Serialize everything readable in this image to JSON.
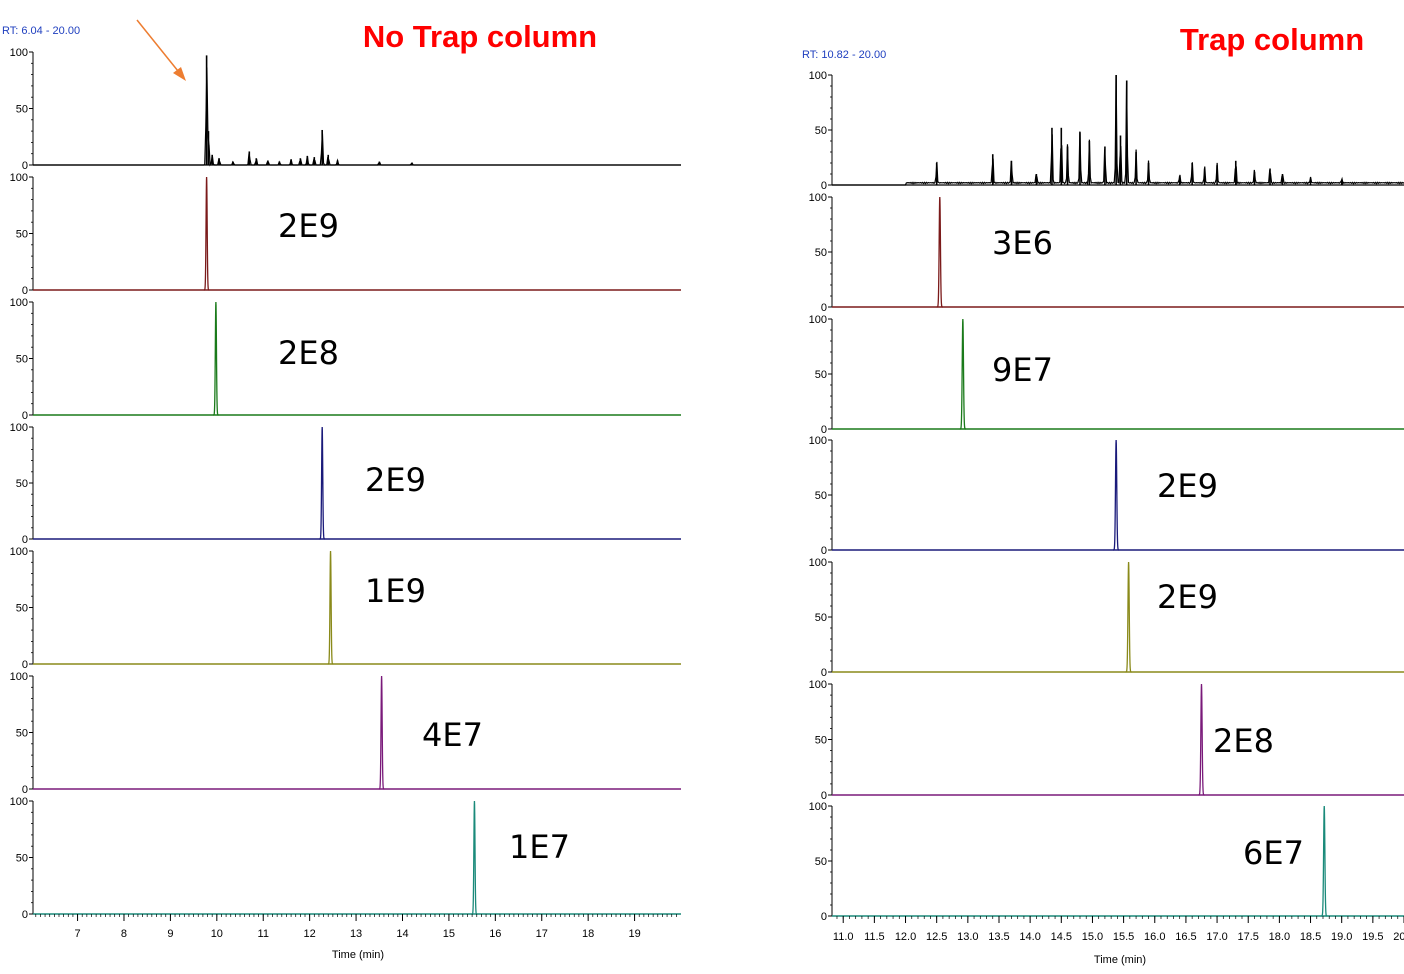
{
  "chart_data": [
    {
      "type": "line",
      "title": "No Trap column",
      "rt_range_label": "RT: 6.04 - 20.00",
      "xlabel": "Time (min)",
      "xlim": [
        6.04,
        20.0
      ],
      "x_ticks": [
        7,
        8,
        9,
        10,
        11,
        12,
        13,
        14,
        15,
        16,
        17,
        18,
        19
      ],
      "ylim": [
        0,
        100
      ],
      "y_ticks": [
        0,
        50,
        100
      ],
      "arrow_annotation": {
        "points_to_x": 9.8
      },
      "tic": {
        "color": "#000000",
        "peaks": [
          [
            9.78,
            97
          ],
          [
            9.82,
            30
          ],
          [
            9.9,
            9
          ],
          [
            10.05,
            6
          ],
          [
            10.35,
            3
          ],
          [
            10.7,
            12
          ],
          [
            10.85,
            6
          ],
          [
            11.1,
            4
          ],
          [
            11.35,
            3
          ],
          [
            11.6,
            5
          ],
          [
            11.8,
            6
          ],
          [
            11.95,
            8
          ],
          [
            12.1,
            7
          ],
          [
            12.27,
            31
          ],
          [
            12.4,
            9
          ],
          [
            12.6,
            4
          ],
          [
            13.5,
            3
          ],
          [
            14.2,
            2
          ]
        ]
      },
      "series": [
        {
          "label": "2E9",
          "color": "#7b1a1a",
          "peak_rt": 9.78
        },
        {
          "label": "2E8",
          "color": "#1a7a1a",
          "peak_rt": 9.98
        },
        {
          "label": "2E9",
          "color": "#1a1a7a",
          "peak_rt": 12.27
        },
        {
          "label": "1E9",
          "color": "#8a8a1a",
          "peak_rt": 12.45
        },
        {
          "label": "4E7",
          "color": "#7a1a7a",
          "peak_rt": 13.55
        },
        {
          "label": "1E7",
          "color": "#1a8a7a",
          "peak_rt": 15.55
        }
      ]
    },
    {
      "type": "line",
      "title": "Trap column",
      "rt_range_label": "RT: 10.82 - 20.00",
      "xlabel": "Time (min)",
      "xlim": [
        10.82,
        20.0
      ],
      "x_ticks": [
        11.0,
        11.5,
        12.0,
        12.5,
        13.0,
        13.5,
        14.0,
        14.5,
        15.0,
        15.5,
        16.0,
        16.5,
        17.0,
        17.5,
        18.0,
        18.5,
        19.0,
        19.5,
        20.0
      ],
      "ylim": [
        0,
        100
      ],
      "y_ticks": [
        0,
        50,
        100
      ],
      "tic": {
        "color": "#000000",
        "peaks": [
          [
            12.5,
            20
          ],
          [
            13.4,
            28
          ],
          [
            13.7,
            22
          ],
          [
            14.1,
            10
          ],
          [
            14.35,
            52
          ],
          [
            14.5,
            52
          ],
          [
            14.6,
            35
          ],
          [
            14.8,
            48
          ],
          [
            14.95,
            40
          ],
          [
            15.2,
            35
          ],
          [
            15.38,
            100
          ],
          [
            15.45,
            45
          ],
          [
            15.55,
            95
          ],
          [
            15.7,
            30
          ],
          [
            15.9,
            20
          ],
          [
            16.4,
            8
          ],
          [
            16.6,
            20
          ],
          [
            16.8,
            15
          ],
          [
            17.0,
            18
          ],
          [
            17.3,
            22
          ],
          [
            17.6,
            12
          ],
          [
            17.85,
            15
          ],
          [
            18.05,
            10
          ],
          [
            18.5,
            5
          ],
          [
            19.0,
            4
          ]
        ]
      },
      "series": [
        {
          "label": "3E6",
          "color": "#7b1a1a",
          "peak_rt": 12.55
        },
        {
          "label": "9E7",
          "color": "#1a7a1a",
          "peak_rt": 12.92
        },
        {
          "label": "2E9",
          "color": "#1a1a7a",
          "peak_rt": 15.38
        },
        {
          "label": "2E9",
          "color": "#8a8a1a",
          "peak_rt": 15.58
        },
        {
          "label": "2E8",
          "color": "#7a1a7a",
          "peak_rt": 16.75
        },
        {
          "label": "6E7",
          "color": "#1a8a7a",
          "peak_rt": 18.72
        }
      ]
    }
  ]
}
